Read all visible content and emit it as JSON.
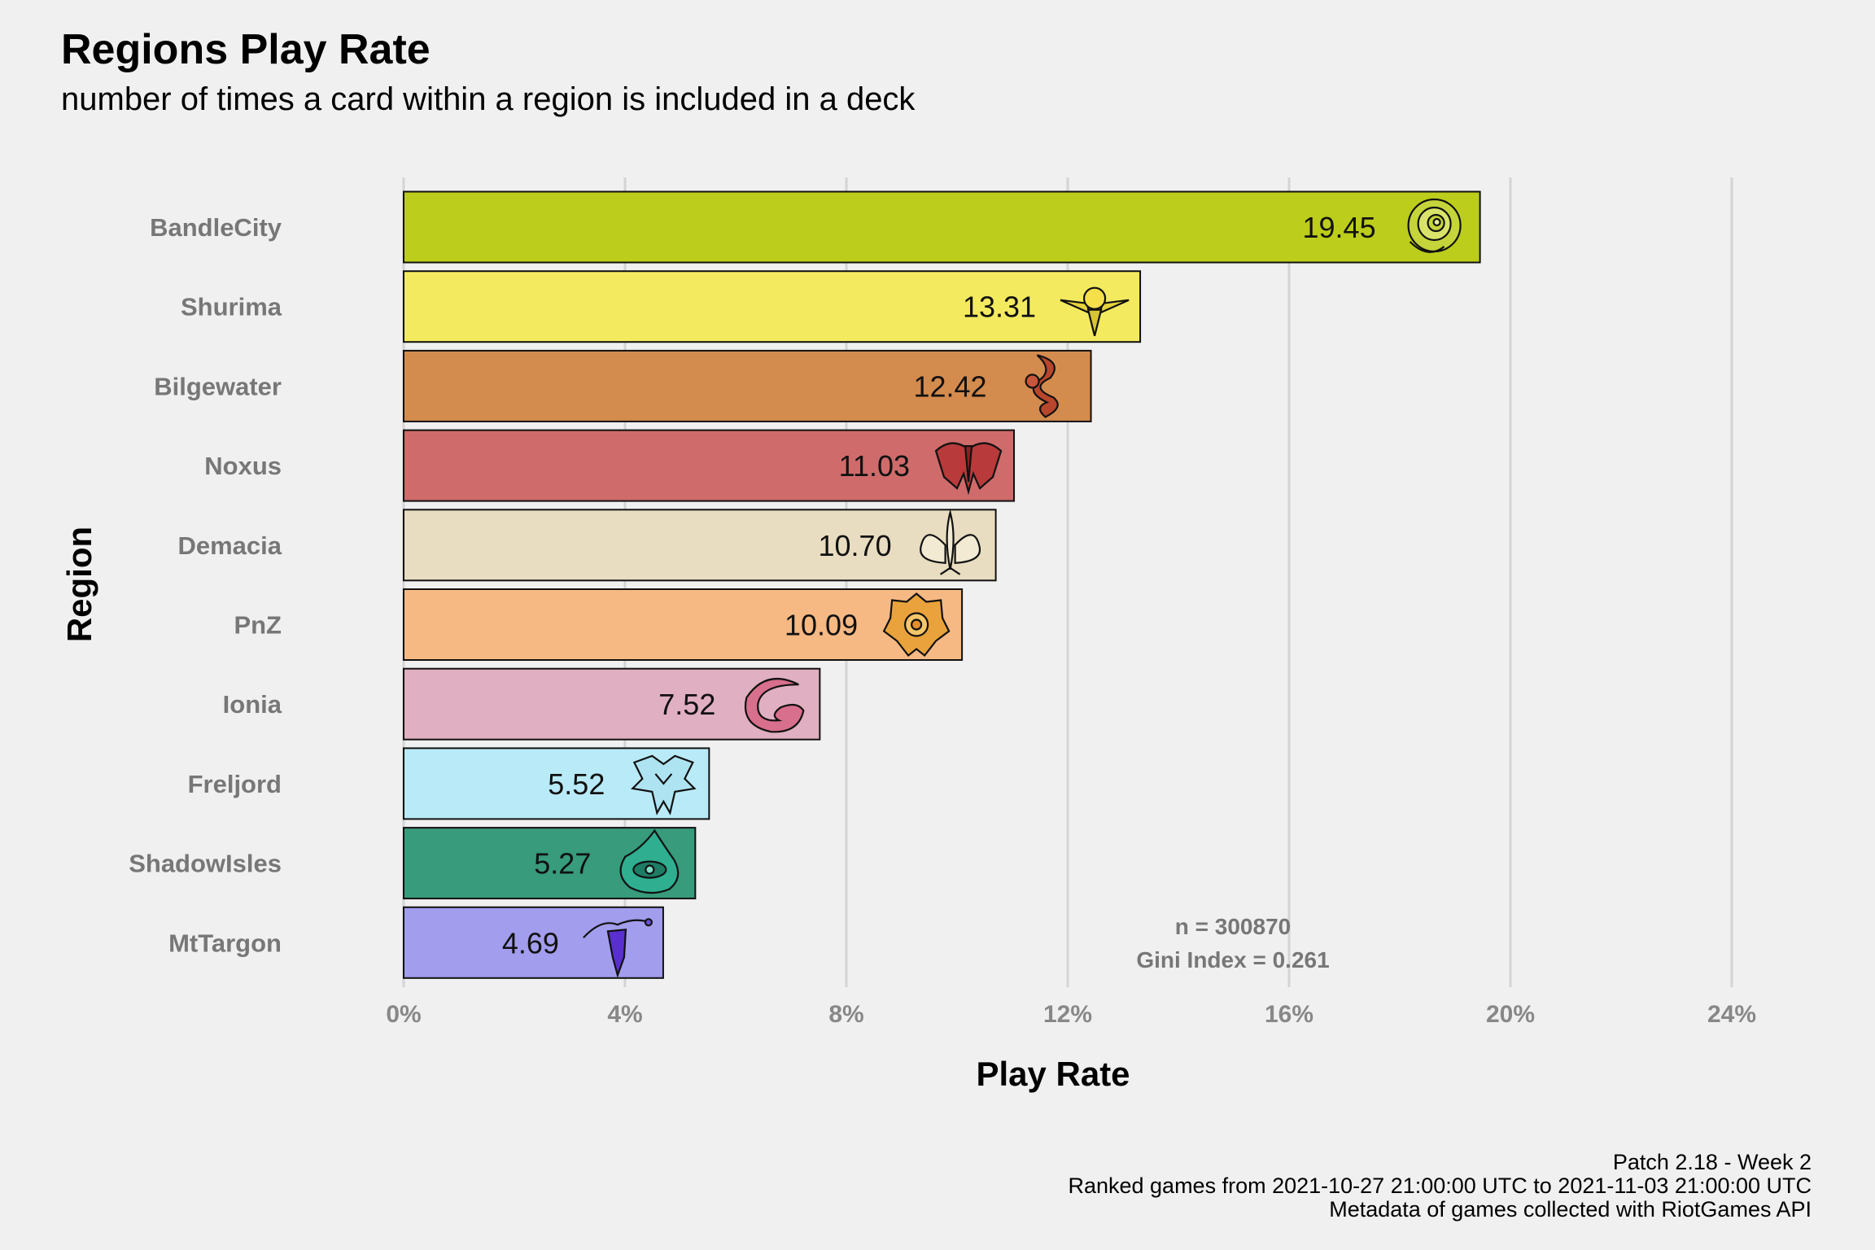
{
  "chart_data": {
    "type": "bar",
    "orientation": "horizontal",
    "title": "Regions Play Rate",
    "subtitle": "number of times a card within a region is included in a deck",
    "xlabel": "Play Rate",
    "ylabel": "Region",
    "xlim": [
      0,
      24
    ],
    "xticks": [
      0,
      4,
      8,
      12,
      16,
      20,
      24
    ],
    "xtick_labels": [
      "0%",
      "4%",
      "8%",
      "12%",
      "16%",
      "20%",
      "24%"
    ],
    "grid": "vertical-major",
    "categories": [
      "BandleCity",
      "Shurima",
      "Bilgewater",
      "Noxus",
      "Demacia",
      "PnZ",
      "Ionia",
      "Freljord",
      "ShadowIsles",
      "MtTargon"
    ],
    "values": [
      19.45,
      13.31,
      12.42,
      11.03,
      10.7,
      10.09,
      7.52,
      5.52,
      5.27,
      4.69
    ],
    "value_labels": [
      "19.45",
      "13.31",
      "12.42",
      "11.03",
      "10.70",
      "10.09",
      "7.52",
      "5.52",
      "5.27",
      "4.69"
    ],
    "colors": [
      "#bccd1b",
      "#f3ea5f",
      "#d48b4e",
      "#cf6b6b",
      "#e8ddc1",
      "#f6b984",
      "#e0afc1",
      "#b9eaf7",
      "#379b7c",
      "#a29ded"
    ],
    "icons": [
      "bandlecity-icon",
      "shurima-icon",
      "bilgewater-icon",
      "noxus-icon",
      "demacia-icon",
      "pnz-icon",
      "ionia-icon",
      "freljord-icon",
      "shadowisles-icon",
      "mttargon-icon"
    ],
    "annotations": [
      "n = 300870",
      "Gini Index = 0.261"
    ]
  },
  "caption": {
    "line1": "Patch 2.18 - Week 2",
    "line2": "Ranked games from 2021-10-27 21:00:00 UTC to 2021-11-03 21:00:00 UTC",
    "line3": "Metadata of games collected with RiotGames API"
  }
}
